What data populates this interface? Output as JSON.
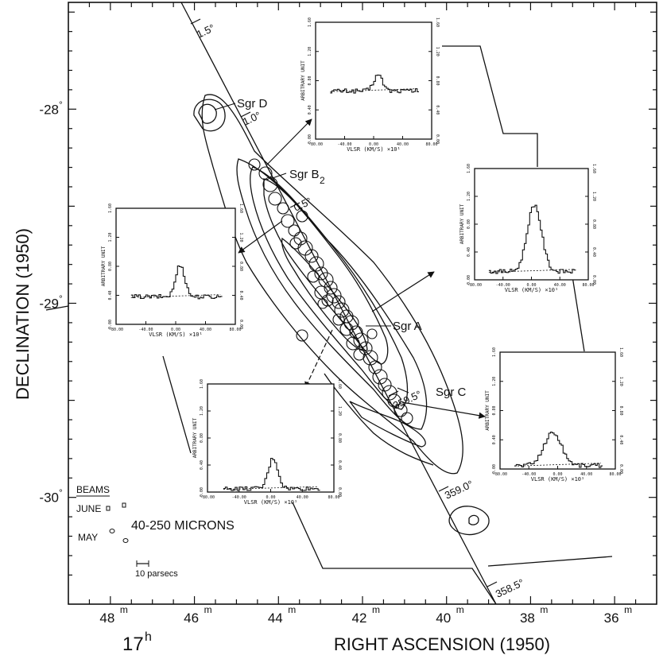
{
  "chart_data": {
    "type": "contour",
    "xlabel": "RIGHT ASCENSION (1950)",
    "xlabel_hour": "17",
    "xlabel_hour_unit": "h",
    "ylabel": "DECLINATION (1950)",
    "x_ticks": [
      {
        "value": 48,
        "label": "48",
        "unit": "m"
      },
      {
        "value": 46,
        "label": "46",
        "unit": "m"
      },
      {
        "value": 44,
        "label": "44",
        "unit": "m"
      },
      {
        "value": 42,
        "label": "42",
        "unit": "m"
      },
      {
        "value": 40,
        "label": "40",
        "unit": "m"
      },
      {
        "value": 38,
        "label": "38",
        "unit": "m"
      },
      {
        "value": 36,
        "label": "36",
        "unit": "m"
      }
    ],
    "y_ticks": [
      {
        "value": -28,
        "label": "-28",
        "unit": "°"
      },
      {
        "value": -29,
        "label": "-29",
        "unit": "°"
      },
      {
        "value": -30,
        "label": "-30",
        "unit": "°"
      }
    ],
    "xlim": [
      49,
      35
    ],
    "ylim": [
      -30.55,
      -27.45
    ],
    "wavelength_label": "40-250 MICRONS",
    "sources": [
      "Sgr D",
      "Sgr B",
      "Sgr A",
      "Sgr C"
    ],
    "sgr_b_subscript": "2",
    "galactic_longitude_labels": [
      "1.5°",
      "1.0°",
      "0.5°",
      "359.5°",
      "359.0°",
      "358.5°"
    ],
    "beams": {
      "title": "BEAMS",
      "rows": [
        "JUNE",
        "MAY"
      ]
    },
    "scale_bar_label": "10 parsecs",
    "inset_spectra": {
      "xlabel": "VLSR (KM/S) ×10¹",
      "ylabel": "ARBITRARY UNIT",
      "x_tick_labels": [
        "-80.00",
        "-40.00",
        "0.00",
        "40.00",
        "80.00"
      ],
      "y_tick_labels": [
        "0.00",
        "0.40",
        "0.80",
        "1.20",
        "1.60"
      ],
      "xlim": [
        -80,
        80
      ],
      "ylim": [
        0,
        1.6
      ],
      "panels": [
        {
          "name": "sgr-d-region",
          "peak": 0.88,
          "center": 5,
          "width": 6,
          "baseline": 0.66
        },
        {
          "name": "sgr-b2-region",
          "peak": 0.82,
          "center": 5,
          "width": 6,
          "baseline": 0.38
        },
        {
          "name": "east-region",
          "peak": 1.08,
          "center": 3,
          "width": 10,
          "baseline": 0.12
        },
        {
          "name": "south-region",
          "peak": 0.5,
          "center": 2,
          "width": 6,
          "baseline": 0.05
        },
        {
          "name": "sgr-c-region",
          "peak": 0.5,
          "center": -8,
          "width": 12,
          "baseline": 0.05
        }
      ]
    }
  }
}
